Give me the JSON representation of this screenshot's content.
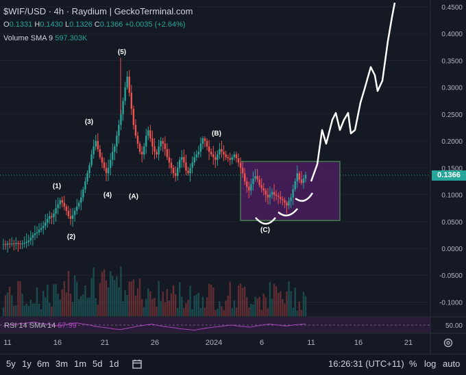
{
  "header": {
    "title": "$WIF/USD · 4h · Raydium | GeckoTerminal.com",
    "ohlc": {
      "o_label": "O",
      "o": "0.1331",
      "h_label": "H",
      "h": "0.1430",
      "l_label": "L",
      "l": "0.1326",
      "c_label": "C",
      "c": "0.1366",
      "change": "+0.0035 (+2.64%)"
    },
    "volume_label": "Volume SMA 9",
    "volume_value": "597.303K"
  },
  "rsi": {
    "label": "RSI 14 SMA 14",
    "value": "57.99",
    "axis_value": "50.00"
  },
  "price_tag": "0.1366",
  "bottom_bar": {
    "ranges": [
      "5y",
      "1y",
      "6m",
      "3m",
      "1m",
      "5d",
      "1d"
    ],
    "time": "16:26:31 (UTC+11)",
    "percent": "%",
    "log": "log",
    "auto": "auto"
  },
  "colors": {
    "up": "#26a69a",
    "down": "#ef5350",
    "rsi": "#ab47bc",
    "box_border": "#4caf50",
    "box_fill": "#4a1e5e"
  },
  "chart_data": {
    "type": "candlestick",
    "y_axis": {
      "ticks": [
        0.45,
        0.4,
        0.35,
        0.3,
        0.25,
        0.2,
        0.15,
        0.1,
        0.05,
        0.0,
        -0.05,
        -0.1
      ],
      "labels": [
        "0.4500",
        "0.4000",
        "0.3500",
        "0.3000",
        "0.2500",
        "0.2000",
        "0.1500",
        "0.1000",
        "0.0500",
        "0.0000",
        "-0.0500",
        "-0.1000"
      ]
    },
    "x_axis": {
      "labels": [
        "11",
        "16",
        "21",
        "26",
        "2024",
        "6",
        "11",
        "16",
        "21"
      ]
    },
    "close": [
      0.008,
      0.007,
      0.009,
      0.008,
      0.009,
      0.008,
      0.01,
      0.009,
      0.008,
      0.009,
      0.01,
      0.012,
      0.015,
      0.02,
      0.025,
      0.028,
      0.03,
      0.035,
      0.038,
      0.042,
      0.048,
      0.055,
      0.06,
      0.058,
      0.065,
      0.075,
      0.082,
      0.09,
      0.085,
      0.078,
      0.07,
      0.06,
      0.055,
      0.062,
      0.07,
      0.078,
      0.085,
      0.095,
      0.11,
      0.125,
      0.14,
      0.155,
      0.175,
      0.19,
      0.2,
      0.185,
      0.17,
      0.16,
      0.15,
      0.14,
      0.15,
      0.165,
      0.18,
      0.19,
      0.21,
      0.23,
      0.25,
      0.275,
      0.3,
      0.32,
      0.29,
      0.26,
      0.23,
      0.21,
      0.195,
      0.18,
      0.175,
      0.19,
      0.21,
      0.22,
      0.205,
      0.19,
      0.18,
      0.175,
      0.19,
      0.2,
      0.195,
      0.185,
      0.17,
      0.16,
      0.15,
      0.14,
      0.135,
      0.15,
      0.165,
      0.17,
      0.16,
      0.145,
      0.14,
      0.15,
      0.16,
      0.17,
      0.175,
      0.18,
      0.195,
      0.205,
      0.2,
      0.19,
      0.18,
      0.175,
      0.17,
      0.165,
      0.175,
      0.185,
      0.18,
      0.175,
      0.17,
      0.168,
      0.165,
      0.17,
      0.175,
      0.168,
      0.16,
      0.15,
      0.14,
      0.125,
      0.115,
      0.108,
      0.12,
      0.13,
      0.135,
      0.128,
      0.118,
      0.112,
      0.108,
      0.1,
      0.095,
      0.1,
      0.105,
      0.1,
      0.098,
      0.096,
      0.092,
      0.09,
      0.085,
      0.08,
      0.088,
      0.095,
      0.11,
      0.125,
      0.14,
      0.128,
      0.122,
      0.13,
      0.137
    ],
    "waves": [
      "(1)",
      "(2)",
      "(3)",
      "(4)",
      "(5)",
      "(A)",
      "(B)",
      "(C)"
    ],
    "rsi_values": [
      52,
      55,
      58,
      60,
      62,
      65,
      60,
      58,
      55,
      52,
      56,
      60,
      62,
      58,
      55,
      50,
      48,
      45,
      42,
      40,
      44,
      48,
      52,
      55,
      58,
      54,
      50,
      48,
      45,
      42,
      40,
      38,
      42,
      45,
      48,
      50,
      53,
      55,
      52,
      50,
      48,
      52,
      55,
      58,
      56,
      54,
      52,
      55,
      57,
      58
    ]
  }
}
